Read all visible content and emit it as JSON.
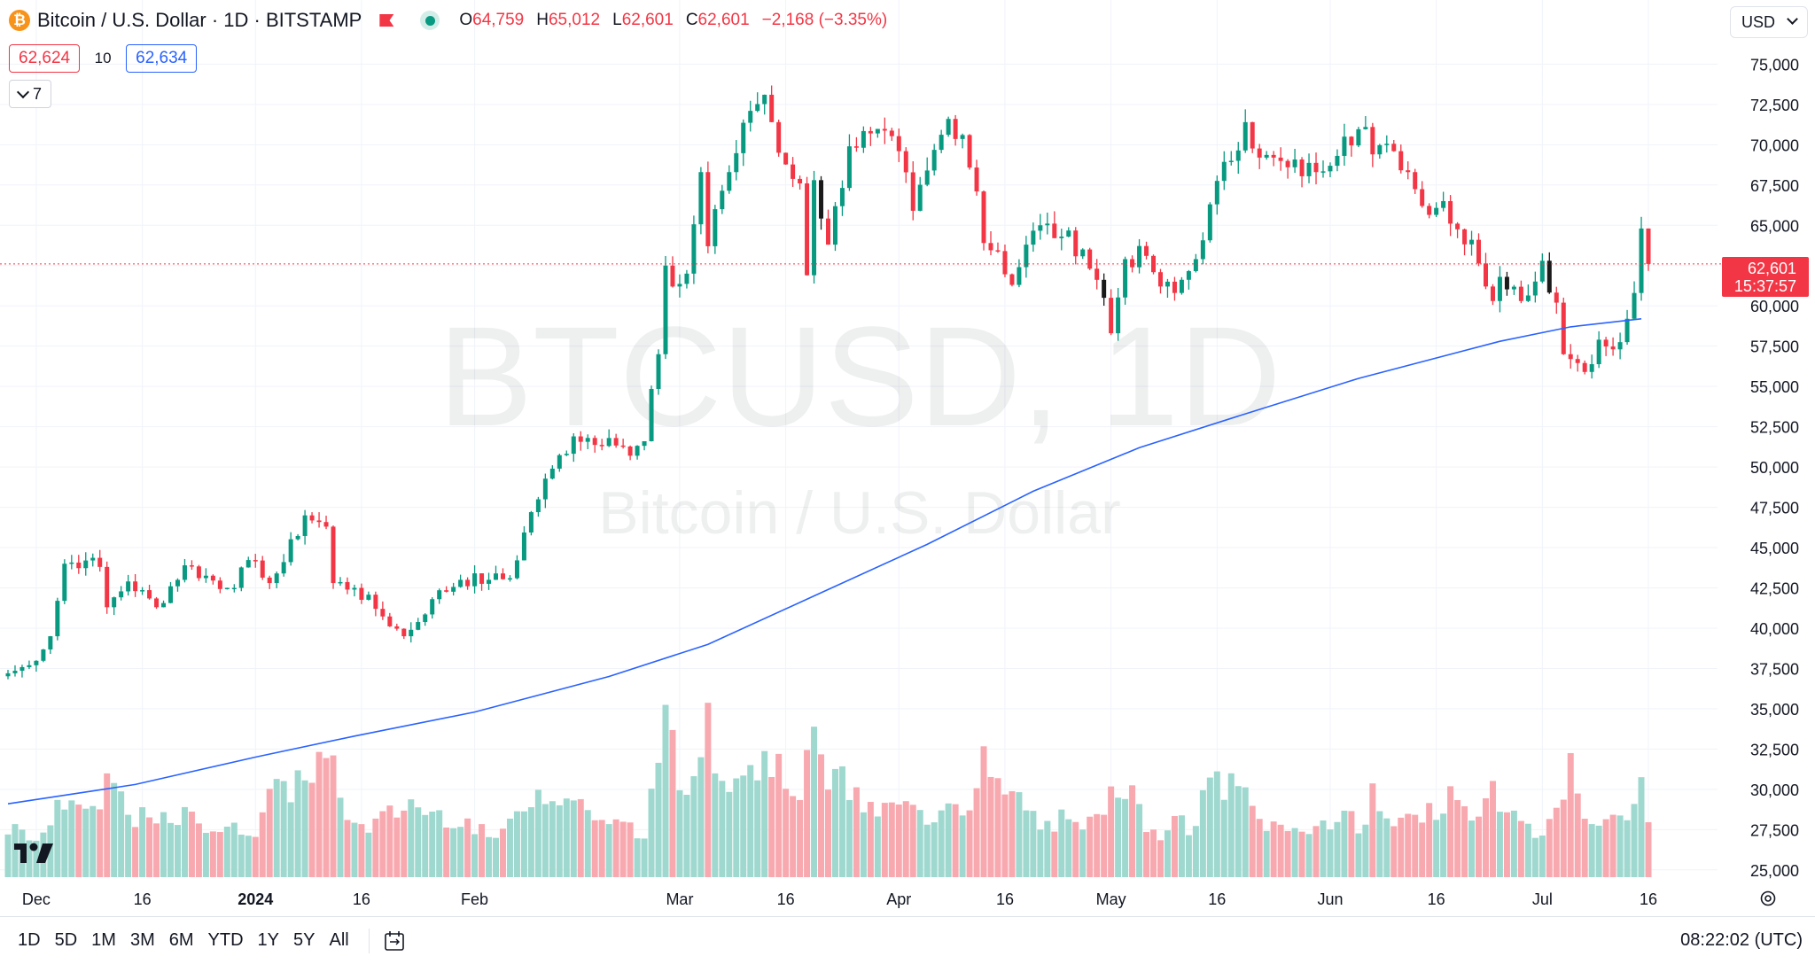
{
  "header": {
    "symbol_title": "Bitcoin / U.S. Dollar · 1D · BITSTAMP",
    "coin_icon": "bitcoin-icon",
    "ohlc": {
      "o_label": "O",
      "o": "64,759",
      "h_label": "H",
      "h": "65,012",
      "l_label": "L",
      "l": "62,601",
      "c_label": "C",
      "c": "62,601",
      "change": "−2,168 (−3.35%)"
    }
  },
  "trade": {
    "sell": "62,624",
    "spread": "10",
    "buy": "62,634"
  },
  "indicators_toggle": {
    "count": "7"
  },
  "currency_select": {
    "value": "USD"
  },
  "watermark": {
    "symbol": "BTCUSD, 1D",
    "description": "Bitcoin / U.S. Dollar"
  },
  "last_price": {
    "price": "62,601",
    "countdown": "15:37:57"
  },
  "bottom_bar": {
    "timeframes": [
      "1D",
      "5D",
      "1M",
      "3M",
      "6M",
      "YTD",
      "1Y",
      "5Y",
      "All"
    ],
    "clock": "08:22:02 (UTC)"
  },
  "colors": {
    "up": "#089981",
    "down": "#f23645",
    "up_volume": "#9fd8cf",
    "down_volume": "#f8a9b0",
    "ma": "#2962ff",
    "grid": "#f0f3fa",
    "hilite": "#2962ff"
  },
  "chart_data": {
    "type": "candlestick",
    "title": "Bitcoin / U.S. Dollar · 1D · BITSTAMP",
    "ylim": [
      24000,
      77000
    ],
    "y_ticks": [
      25000,
      27500,
      30000,
      32500,
      35000,
      37500,
      40000,
      42500,
      45000,
      47500,
      50000,
      52500,
      55000,
      57500,
      60000,
      62500,
      65000,
      67500,
      70000,
      72500,
      75000
    ],
    "x_ticks": [
      {
        "label": "Dec",
        "date": "2023-12-01"
      },
      {
        "label": "16",
        "date": "2023-12-16"
      },
      {
        "label": "2024",
        "date": "2024-01-01",
        "bold": true
      },
      {
        "label": "16",
        "date": "2024-01-16"
      },
      {
        "label": "Feb",
        "date": "2024-02-01"
      },
      {
        "label": "Mar",
        "date": "2024-03-01"
      },
      {
        "label": "16",
        "date": "2024-03-16"
      },
      {
        "label": "Apr",
        "date": "2024-04-01"
      },
      {
        "label": "16",
        "date": "2024-04-16"
      },
      {
        "label": "May",
        "date": "2024-05-01"
      },
      {
        "label": "16",
        "date": "2024-05-16"
      },
      {
        "label": "Jun",
        "date": "2024-06-01"
      },
      {
        "label": "16",
        "date": "2024-06-16"
      },
      {
        "label": "Jul",
        "date": "2024-07-01"
      },
      {
        "label": "16",
        "date": "2024-07-16"
      }
    ],
    "last_price_line": 62601,
    "ma_series": {
      "name": "",
      "points": [
        [
          "2023-11-27",
          29100
        ],
        [
          "2023-12-15",
          30300
        ],
        [
          "2024-01-01",
          32000
        ],
        [
          "2024-01-15",
          33300
        ],
        [
          "2024-02-01",
          34800
        ],
        [
          "2024-02-20",
          37000
        ],
        [
          "2024-03-05",
          39000
        ],
        [
          "2024-03-20",
          42000
        ],
        [
          "2024-04-05",
          45200
        ],
        [
          "2024-04-20",
          48500
        ],
        [
          "2024-05-05",
          51200
        ],
        [
          "2024-05-20",
          53300
        ],
        [
          "2024-06-05",
          55500
        ],
        [
          "2024-06-25",
          57800
        ],
        [
          "2024-07-05",
          58700
        ],
        [
          "2024-07-15",
          59200
        ]
      ]
    },
    "anchors": [
      [
        "2023-11-27",
        37200,
        0.3
      ],
      [
        "2023-11-30",
        37700,
        0.22
      ],
      [
        "2023-12-03",
        39500,
        0.3
      ],
      [
        "2023-12-05",
        44000,
        0.45
      ],
      [
        "2023-12-08",
        44200,
        0.4
      ],
      [
        "2023-12-10",
        43800,
        0.32
      ],
      [
        "2023-12-11",
        41300,
        0.6
      ],
      [
        "2023-12-14",
        42900,
        0.36
      ],
      [
        "2023-12-18",
        41300,
        0.3
      ],
      [
        "2023-12-22",
        43900,
        0.34
      ],
      [
        "2023-12-28",
        42500,
        0.26
      ],
      [
        "2024-01-01",
        44200,
        0.28
      ],
      [
        "2024-01-03",
        42800,
        0.5
      ],
      [
        "2024-01-05",
        44100,
        0.46
      ],
      [
        "2024-01-08",
        47000,
        0.6
      ],
      [
        "2024-01-11",
        46300,
        0.65
      ],
      [
        "2024-01-12",
        42800,
        0.58
      ],
      [
        "2024-01-15",
        42500,
        0.28
      ],
      [
        "2024-01-18",
        41200,
        0.3
      ],
      [
        "2024-01-22",
        39500,
        0.4
      ],
      [
        "2024-01-23",
        39900,
        0.42
      ],
      [
        "2024-01-26",
        41800,
        0.36
      ],
      [
        "2024-01-30",
        43000,
        0.34
      ],
      [
        "2024-02-03",
        43000,
        0.22
      ],
      [
        "2024-02-06",
        43100,
        0.28
      ],
      [
        "2024-02-09",
        47200,
        0.48
      ],
      [
        "2024-02-12",
        49900,
        0.5
      ],
      [
        "2024-02-15",
        51900,
        0.44
      ],
      [
        "2024-02-20",
        51800,
        0.3
      ],
      [
        "2024-02-23",
        50700,
        0.28
      ],
      [
        "2024-02-25",
        51600,
        0.2
      ],
      [
        "2024-02-27",
        57000,
        0.8
      ],
      [
        "2024-02-28",
        62500,
        0.9
      ],
      [
        "2024-02-29",
        61200,
        0.7
      ],
      [
        "2024-03-02",
        62000,
        0.4
      ],
      [
        "2024-03-04",
        68300,
        0.78
      ],
      [
        "2024-03-05",
        63700,
        0.95
      ],
      [
        "2024-03-06",
        66000,
        0.7
      ],
      [
        "2024-03-08",
        68300,
        0.6
      ],
      [
        "2024-03-11",
        72100,
        0.66
      ],
      [
        "2024-03-13",
        73100,
        0.62
      ],
      [
        "2024-03-14",
        71400,
        0.7
      ],
      [
        "2024-03-15",
        69500,
        0.58
      ],
      [
        "2024-03-18",
        67600,
        0.52
      ],
      [
        "2024-03-19",
        61900,
        0.7
      ],
      [
        "2024-03-20",
        67800,
        0.72
      ],
      [
        "2024-03-22",
        63800,
        0.58
      ],
      [
        "2024-03-25",
        69900,
        0.5
      ],
      [
        "2024-03-28",
        70700,
        0.36
      ],
      [
        "2024-04-01",
        69600,
        0.4
      ],
      [
        "2024-04-03",
        65900,
        0.38
      ],
      [
        "2024-04-05",
        68400,
        0.3
      ],
      [
        "2024-04-08",
        71600,
        0.48
      ],
      [
        "2024-04-10",
        70600,
        0.4
      ],
      [
        "2024-04-12",
        67100,
        0.5
      ],
      [
        "2024-04-13",
        63900,
        0.65
      ],
      [
        "2024-04-15",
        63400,
        0.48
      ],
      [
        "2024-04-17",
        61300,
        0.46
      ],
      [
        "2024-04-19",
        63800,
        0.4
      ],
      [
        "2024-04-21",
        65000,
        0.28
      ],
      [
        "2024-04-24",
        64300,
        0.32
      ],
      [
        "2024-04-27",
        63500,
        0.24
      ],
      [
        "2024-04-30",
        60500,
        0.42
      ],
      [
        "2024-05-01",
        58300,
        0.6
      ],
      [
        "2024-05-03",
        62900,
        0.52
      ],
      [
        "2024-05-06",
        63100,
        0.3
      ],
      [
        "2024-05-08",
        61200,
        0.26
      ],
      [
        "2024-05-10",
        60800,
        0.3
      ],
      [
        "2024-05-13",
        62900,
        0.28
      ],
      [
        "2024-05-15",
        66300,
        0.56
      ],
      [
        "2024-05-20",
        71400,
        0.46
      ],
      [
        "2024-05-22",
        69200,
        0.32
      ],
      [
        "2024-05-26",
        68600,
        0.26
      ],
      [
        "2024-05-30",
        68300,
        0.3
      ],
      [
        "2024-06-03",
        70500,
        0.32
      ],
      [
        "2024-06-06",
        71100,
        0.3
      ],
      [
        "2024-06-07",
        69400,
        0.48
      ],
      [
        "2024-06-10",
        69600,
        0.26
      ],
      [
        "2024-06-12",
        68300,
        0.4
      ],
      [
        "2024-06-14",
        66200,
        0.38
      ],
      [
        "2024-06-17",
        66500,
        0.3
      ],
      [
        "2024-06-18",
        65100,
        0.44
      ],
      [
        "2024-06-21",
        64100,
        0.34
      ],
      [
        "2024-06-24",
        60300,
        0.54
      ],
      [
        "2024-06-25",
        61800,
        0.46
      ],
      [
        "2024-06-28",
        60300,
        0.3
      ],
      [
        "2024-07-01",
        62800,
        0.26
      ],
      [
        "2024-07-03",
        60200,
        0.34
      ],
      [
        "2024-07-04",
        57000,
        0.52
      ],
      [
        "2024-07-05",
        56700,
        0.62
      ],
      [
        "2024-07-07",
        55900,
        0.34
      ],
      [
        "2024-07-09",
        57900,
        0.36
      ],
      [
        "2024-07-11",
        57300,
        0.3
      ],
      [
        "2024-07-13",
        59200,
        0.32
      ],
      [
        "2024-07-14",
        60800,
        0.42
      ],
      [
        "2024-07-15",
        64800,
        0.68
      ],
      [
        "2024-07-16",
        62601,
        0.28
      ]
    ],
    "highlighted_candles": [
      "2024-03-21",
      "2024-04-30",
      "2024-06-26",
      "2024-07-02"
    ]
  }
}
